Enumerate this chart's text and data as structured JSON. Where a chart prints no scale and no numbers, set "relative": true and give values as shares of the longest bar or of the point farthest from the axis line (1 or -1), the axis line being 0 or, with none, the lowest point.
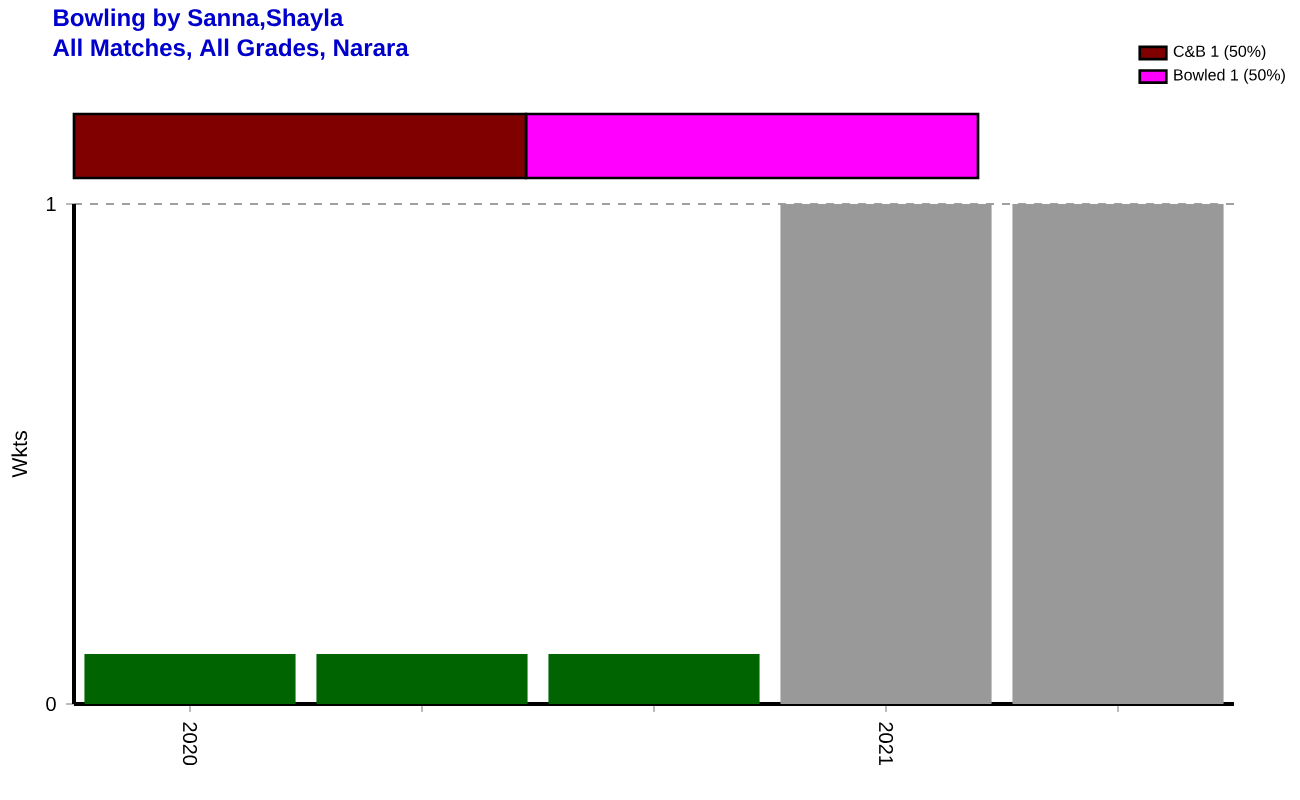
{
  "chart_data": [
    {
      "type": "bar",
      "title": "Bowling by Sanna,Shayla",
      "subtitle": "All Matches, All Grades, Narara",
      "orientation": "horizontal",
      "stacked": true,
      "relative": true,
      "categories": [
        null
      ],
      "legend": "top right",
      "series": [
        {
          "name": "C&B 1 (50%)",
          "color": "#800000",
          "values": [
            0.5
          ]
        },
        {
          "name": "Bowled 1 (50%)",
          "color": "#ff00ff",
          "values": [
            0.5
          ]
        }
      ]
    },
    {
      "type": "bar",
      "ylabel": "Wkts",
      "categories": [
        "2020",
        null,
        null,
        "2021",
        null
      ],
      "values": [
        0.1,
        0.1,
        0.1,
        1,
        1
      ],
      "colors": [
        "#006400",
        "#006400",
        "#006400",
        "#999999",
        "#999999"
      ],
      "ylim": [
        0,
        1
      ],
      "yticks": [
        0,
        1
      ],
      "grid": "y"
    }
  ]
}
